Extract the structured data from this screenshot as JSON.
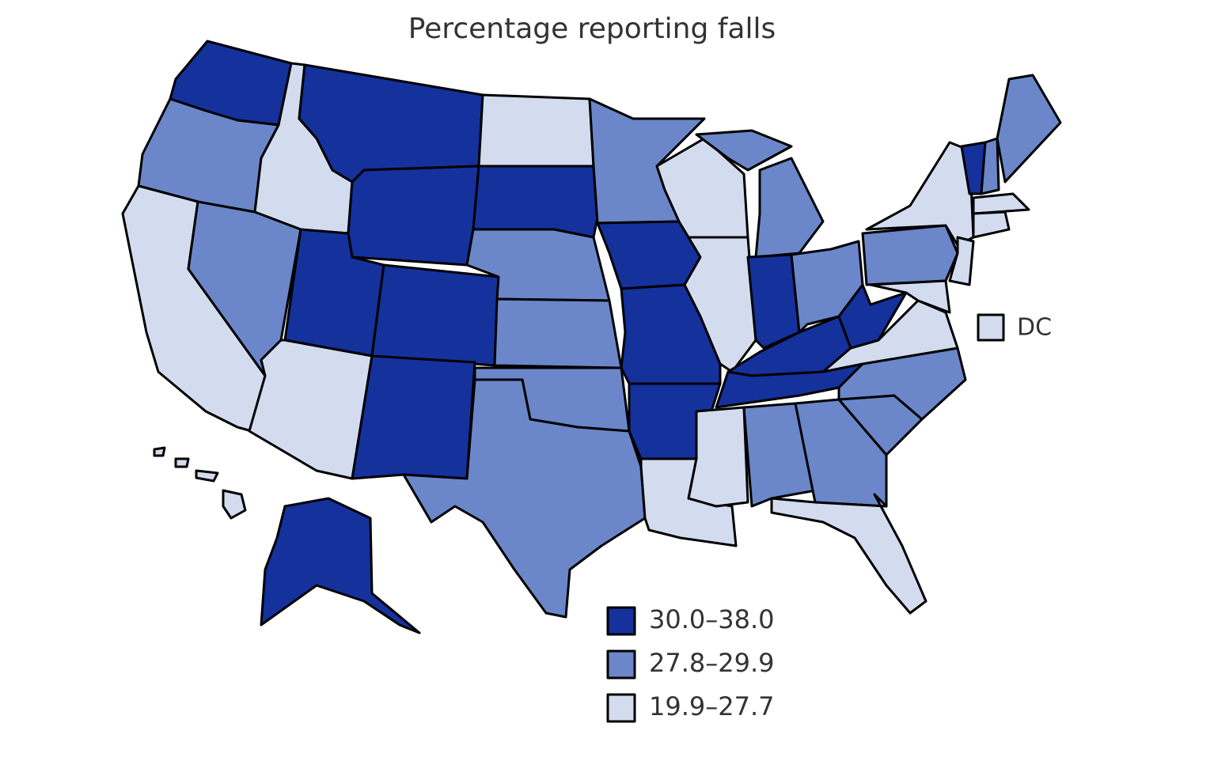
{
  "title": "Percentage reporting falls",
  "legend": [
    {
      "label": "30.0–38.0",
      "color": "#14319c"
    },
    {
      "label": "27.8–29.9",
      "color": "#6b86c9"
    },
    {
      "label": "19.9–27.7",
      "color": "#d3dbef"
    }
  ],
  "dc": {
    "label": "DC"
  }
}
